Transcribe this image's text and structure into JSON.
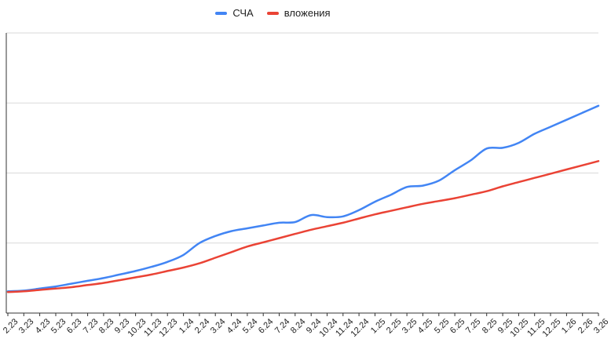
{
  "chart_data": {
    "type": "line",
    "title": "",
    "xlabel": "",
    "ylabel": "",
    "y_axis_tick_labels_visible": false,
    "ylim": [
      0,
      4
    ],
    "y_unit_note": "value axis unlabeled in screenshot; values given in gridline units (0-4, one unit per gridline)",
    "grid": true,
    "gridline_count": 5,
    "legend_position": "top",
    "smooth_lines": true,
    "x_labels": [
      "2.23",
      "3.23",
      "4.23",
      "5.23",
      "6.23",
      "7.23",
      "8.23",
      "9.23",
      "10.23",
      "11.23",
      "12.23",
      "1.24",
      "2.24",
      "3.24",
      "4.24",
      "5.24",
      "6.24",
      "7.24",
      "8.24",
      "9.24",
      "10.24",
      "11.24",
      "12.24",
      "1.25",
      "2.25",
      "3.25",
      "4.25",
      "5.25",
      "6.25",
      "7.25",
      "8.25",
      "9.25",
      "10.25",
      "11.25",
      "12.25",
      "1.26",
      "2.26",
      "3.26"
    ],
    "series": [
      {
        "name": "СЧА",
        "color": "#4285F4",
        "values": [
          0.31,
          0.32,
          0.35,
          0.38,
          0.42,
          0.46,
          0.5,
          0.55,
          0.6,
          0.66,
          0.73,
          0.83,
          1.0,
          1.1,
          1.17,
          1.21,
          1.25,
          1.29,
          1.3,
          1.4,
          1.37,
          1.38,
          1.47,
          1.59,
          1.69,
          1.8,
          1.82,
          1.89,
          2.04,
          2.18,
          2.35,
          2.36,
          2.43,
          2.56,
          2.66,
          2.76,
          2.86,
          2.96
        ]
      },
      {
        "name": "вложения",
        "color": "#EA4335",
        "values": [
          0.3,
          0.31,
          0.33,
          0.35,
          0.37,
          0.4,
          0.43,
          0.47,
          0.51,
          0.55,
          0.6,
          0.65,
          0.71,
          0.79,
          0.87,
          0.95,
          1.01,
          1.07,
          1.13,
          1.19,
          1.24,
          1.29,
          1.35,
          1.41,
          1.46,
          1.51,
          1.56,
          1.6,
          1.64,
          1.69,
          1.74,
          1.81,
          1.87,
          1.93,
          1.99,
          2.05,
          2.11,
          2.17
        ]
      }
    ],
    "style": {
      "grid_color": "#d9d9d9",
      "axis_color": "#333333",
      "label_color": "#222222",
      "background": "#ffffff"
    }
  }
}
